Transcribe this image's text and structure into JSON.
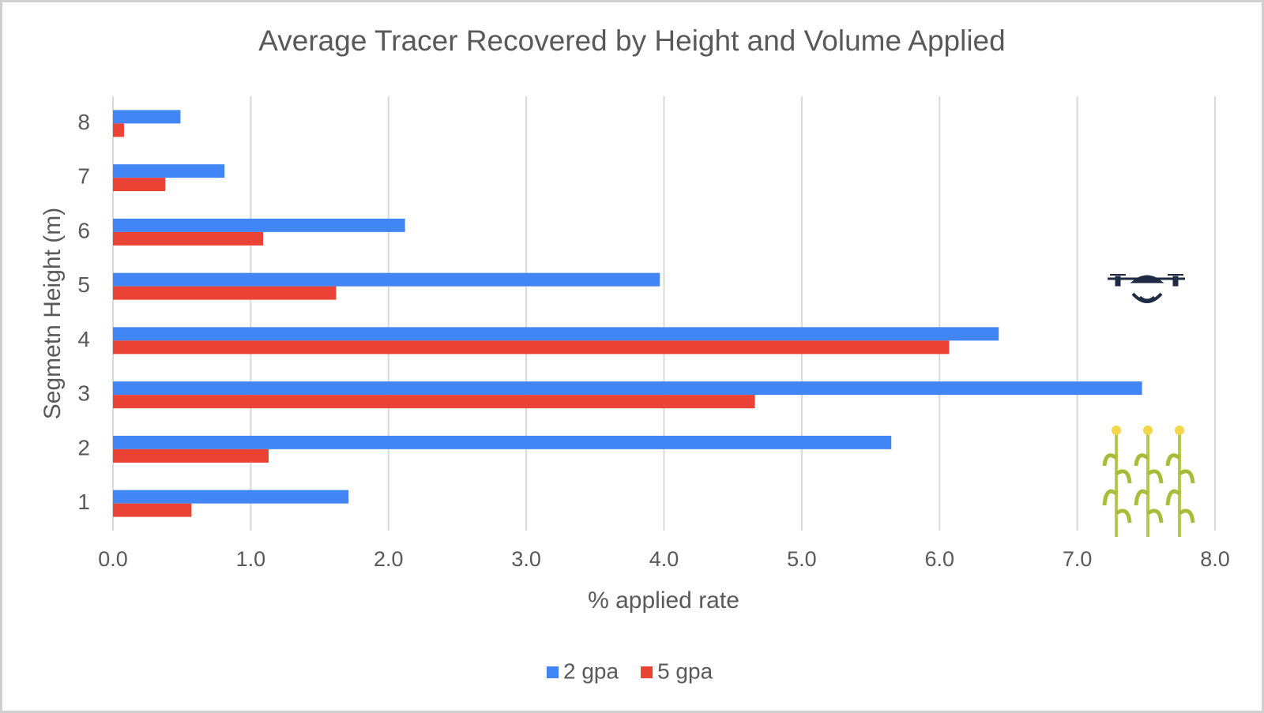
{
  "chart_data": {
    "type": "hbar",
    "title": "Average Tracer Recovered by Height and Volume Applied",
    "x_label": "% applied rate",
    "y_label": "Segmetn Height (m)",
    "categories": [
      "1",
      "2",
      "3",
      "4",
      "5",
      "6",
      "7",
      "8"
    ],
    "series": [
      {
        "name": "2 gpa",
        "color": "#4285f4",
        "values": [
          1.71,
          5.65,
          7.47,
          6.43,
          3.97,
          2.12,
          0.81,
          0.49
        ]
      },
      {
        "name": "5 gpa",
        "color": "#ea4335",
        "values": [
          0.57,
          1.13,
          4.66,
          6.07,
          1.62,
          1.09,
          0.38,
          0.08
        ]
      }
    ],
    "xlim": [
      0,
      8
    ],
    "xticks": [
      {
        "value": 0,
        "label": "0.0"
      },
      {
        "value": 1,
        "label": "1.0"
      },
      {
        "value": 2,
        "label": "2.0"
      },
      {
        "value": 3,
        "label": "3.0"
      },
      {
        "value": 4,
        "label": "4.0"
      },
      {
        "value": 5,
        "label": "5.0"
      },
      {
        "value": 6,
        "label": "6.0"
      },
      {
        "value": 7,
        "label": "7.0"
      },
      {
        "value": 8,
        "label": "8.0"
      }
    ],
    "grid": true,
    "legend": "bottom"
  }
}
